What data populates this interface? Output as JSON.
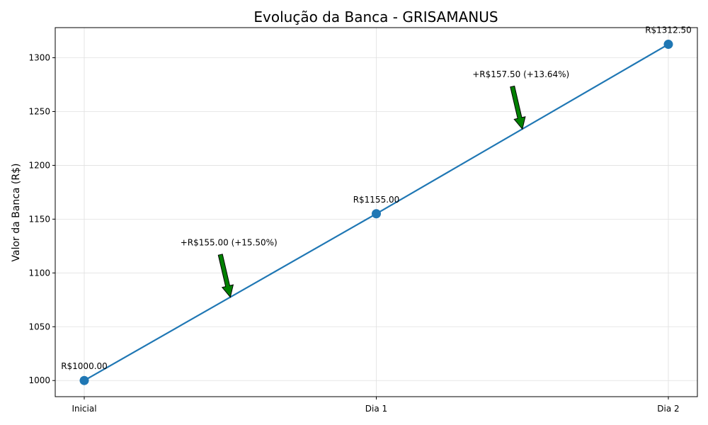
{
  "chart_data": {
    "type": "line",
    "title": "Evolução da Banca - GRISAMANUS",
    "xlabel": "",
    "ylabel": "Valor da Banca (R$)",
    "categories": [
      "Inicial",
      "Dia 1",
      "Dia 2"
    ],
    "values": [
      1000.0,
      1155.0,
      1312.5
    ],
    "point_labels": [
      "R$1000.00",
      "R$1155.00",
      "R$1312.50"
    ],
    "yticks": [
      1000,
      1050,
      1100,
      1150,
      1200,
      1250,
      1300
    ],
    "ylim": [
      985,
      1328
    ],
    "grid": true,
    "line_color": "#1f77b4",
    "arrow_color": "#008000",
    "annotations": [
      {
        "text": "+R$155.00 (+15.50%)",
        "x": 0.5,
        "y": 1077.5
      },
      {
        "text": "+R$157.50 (+13.64%)",
        "x": 1.5,
        "y": 1233.75
      }
    ]
  }
}
